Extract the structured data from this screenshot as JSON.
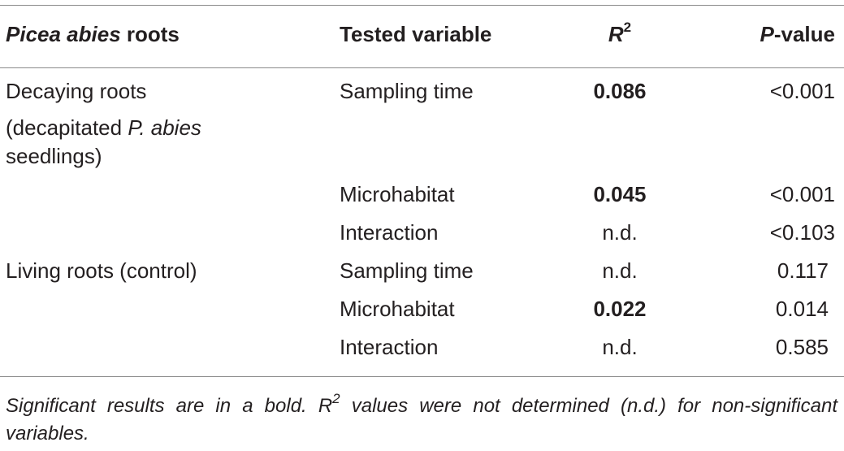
{
  "header": {
    "col1_italic": "Picea abies",
    "col1_rest": " roots",
    "col2": "Tested variable",
    "col3_letter": "R",
    "col3_sup": "2",
    "col4_italic": "P",
    "col4_rest": "-value"
  },
  "groups": [
    {
      "label_line1": "Decaying roots",
      "label_line2_pre": "(decapitated ",
      "label_line2_italic": "P. abies",
      "label_line3": "seedlings)",
      "rows": [
        {
          "variable": "Sampling time",
          "r2": "0.086",
          "r2_bold": true,
          "p": "<0.001"
        },
        {
          "variable": "Microhabitat",
          "r2": "0.045",
          "r2_bold": true,
          "p": "<0.001"
        },
        {
          "variable": "Interaction",
          "r2": "n.d.",
          "r2_bold": false,
          "p": "<0.103"
        }
      ]
    },
    {
      "label_line1": "Living roots (control)",
      "rows": [
        {
          "variable": "Sampling time",
          "r2": "n.d.",
          "r2_bold": false,
          "p": "0.117"
        },
        {
          "variable": "Microhabitat",
          "r2": "0.022",
          "r2_bold": true,
          "p": "0.014"
        },
        {
          "variable": "Interaction",
          "r2": "n.d.",
          "r2_bold": false,
          "p": "0.585"
        }
      ]
    }
  ],
  "footnote": {
    "part1": "Significant results are in a bold. ",
    "r_letter": "R",
    "r_sup": "2",
    "part2": " values were not determined (n.d.) for non-significant variables."
  }
}
